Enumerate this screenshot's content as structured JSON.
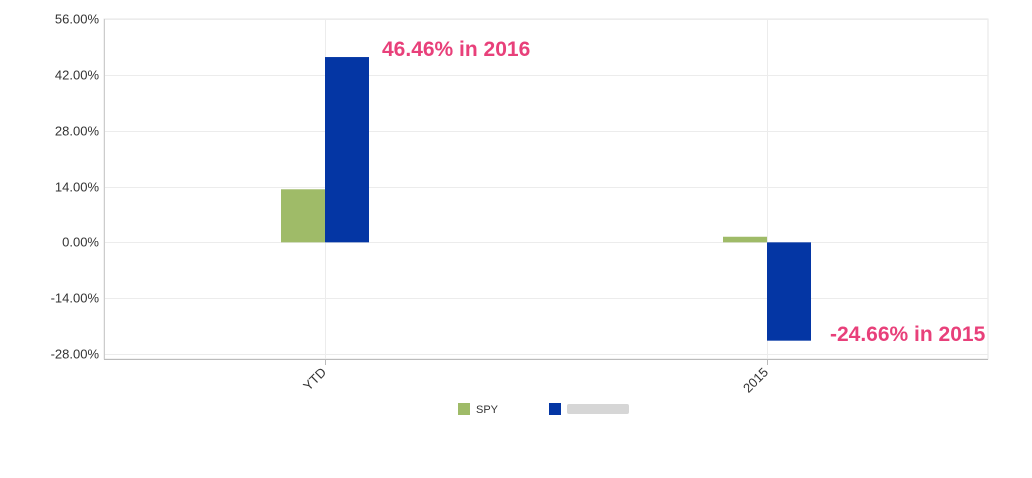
{
  "chart_data": {
    "type": "bar",
    "categories": [
      "YTD",
      "2015"
    ],
    "series": [
      {
        "name": "SPY",
        "values": [
          13.3,
          1.4
        ],
        "color": "#9fbb68"
      },
      {
        "name": "",
        "values": [
          46.46,
          -24.66
        ],
        "color": "#0436a4",
        "legend_blurred": true
      }
    ],
    "yticks": [
      "56.00%",
      "42.00%",
      "28.00%",
      "14.00%",
      "0.00%",
      "-14.00%",
      "-28.00%"
    ],
    "ylim": [
      -28,
      56
    ],
    "ytick_step": 14,
    "grid": true,
    "legend_position": "bottom-center",
    "annotations": [
      {
        "text": "46.46% in 2016",
        "category": "YTD",
        "value": 46.46
      },
      {
        "text": "-24.66% in 2015",
        "category": "2015",
        "value": -24.66
      }
    ],
    "title": "",
    "xlabel": "",
    "ylabel": ""
  }
}
